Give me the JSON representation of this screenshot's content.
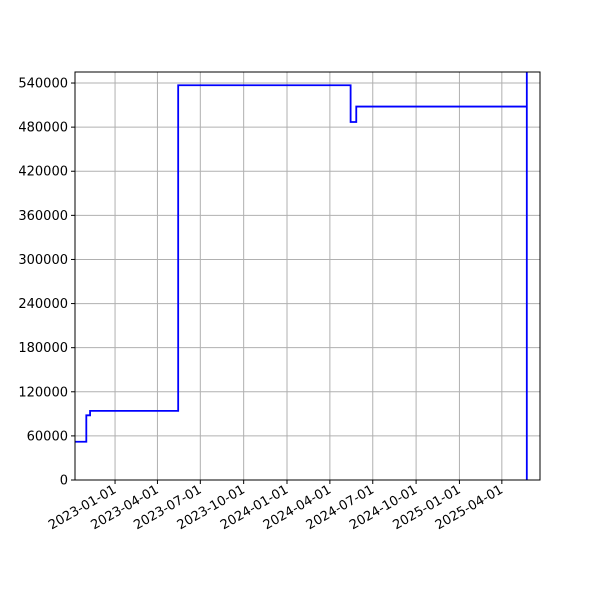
{
  "chart_data": {
    "type": "line",
    "title": "",
    "xlabel": "",
    "ylabel": "",
    "grid": true,
    "legend": "none",
    "xlim": [
      "2022-10-08",
      "2025-06-21"
    ],
    "ylim": [
      0,
      555000
    ],
    "x_ticks": [
      "2023-01-01",
      "2023-04-01",
      "2023-07-01",
      "2023-10-01",
      "2024-01-01",
      "2024-04-01",
      "2024-07-01",
      "2024-10-01",
      "2025-01-01",
      "2025-04-01"
    ],
    "y_ticks": [
      0,
      60000,
      120000,
      180000,
      240000,
      300000,
      360000,
      420000,
      480000,
      540000
    ],
    "series": [
      {
        "color": "#0000ff",
        "x": [
          "2022-10-08",
          "2022-11-01",
          "2022-11-01",
          "2022-11-09",
          "2022-11-09",
          "2023-05-15",
          "2023-05-15",
          "2024-05-15",
          "2024-05-15",
          "2024-05-27",
          "2024-05-27",
          "2025-05-24",
          "2025-05-24",
          "2025-05-24"
        ],
        "y": [
          52000,
          52000,
          88000,
          88000,
          94000,
          94000,
          537000,
          537000,
          487000,
          487000,
          508000,
          508000,
          0,
          555000
        ]
      }
    ]
  }
}
